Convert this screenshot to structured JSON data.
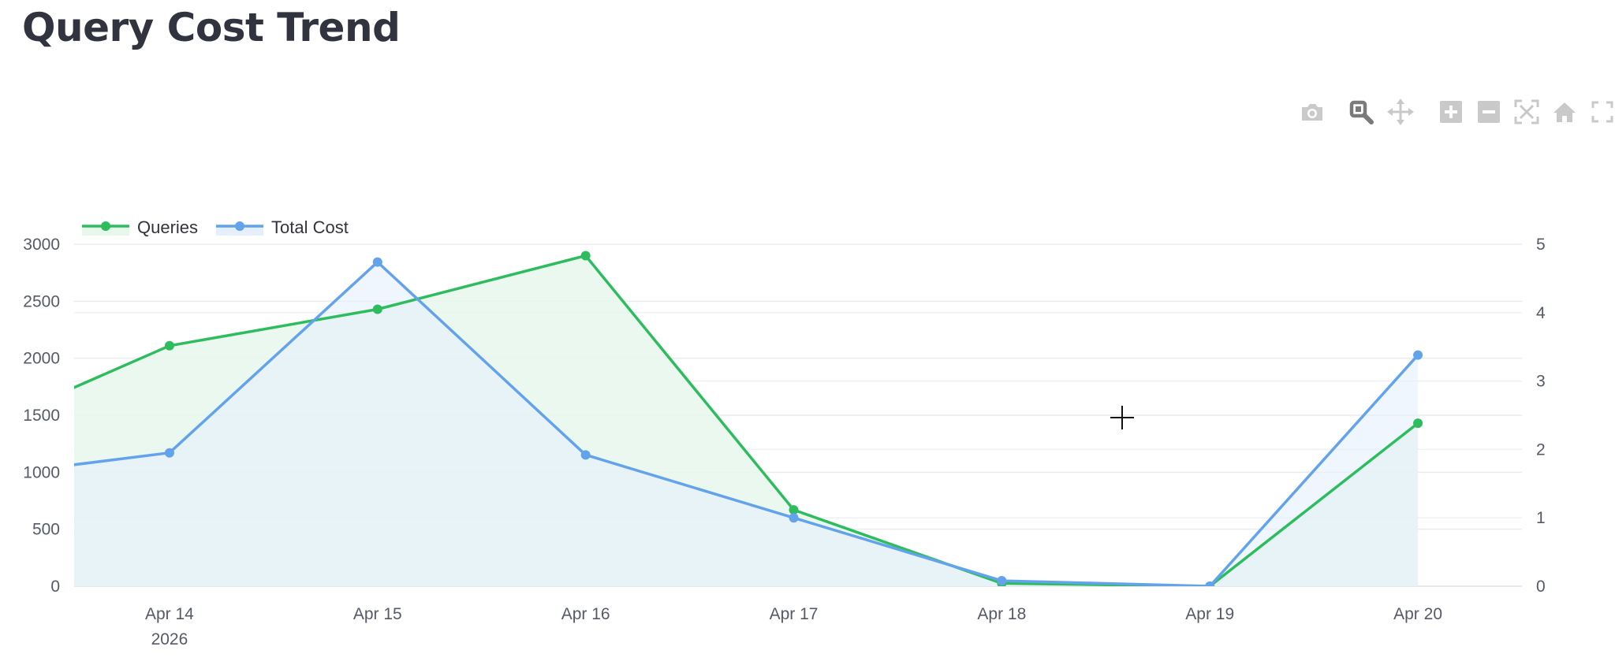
{
  "page": {
    "title": "Query Cost Trend"
  },
  "modebar": {
    "icons": [
      "camera-icon",
      "zoom-icon",
      "pan-icon",
      "zoom-in-icon",
      "zoom-out-icon",
      "autoscale-icon",
      "reset-axes-icon",
      "fullscreen-icon"
    ]
  },
  "chart_data": {
    "type": "area",
    "title": "",
    "xlabel": "",
    "ylabel": "",
    "x_ticks": [
      "Apr 14",
      "Apr 15",
      "Apr 16",
      "Apr 17",
      "Apr 18",
      "Apr 19",
      "Apr 20"
    ],
    "x_year_label": "2026",
    "x_range": [
      "2026-04-13 13:00",
      "2026-04-20 12:00"
    ],
    "y_left": {
      "range": [
        0,
        3000
      ],
      "ticks": [
        0,
        500,
        1000,
        1500,
        2000,
        2500,
        3000
      ]
    },
    "y_right": {
      "range": [
        0,
        5
      ],
      "ticks": [
        0,
        1,
        2,
        3,
        4,
        5
      ]
    },
    "grid": true,
    "legend": {
      "position": "top-left",
      "orientation": "horizontal"
    },
    "series": [
      {
        "name": "Queries",
        "axis": "left",
        "color": "#2ebd5e",
        "fill": "#e8f7ec",
        "points": [
          {
            "x": "2026-04-13",
            "y": 1310
          },
          {
            "x": "2026-04-14",
            "y": 2110
          },
          {
            "x": "2026-04-15",
            "y": 2430
          },
          {
            "x": "2026-04-16",
            "y": 2900
          },
          {
            "x": "2026-04-17",
            "y": 670
          },
          {
            "x": "2026-04-18",
            "y": 25
          },
          {
            "x": "2026-04-19",
            "y": 0
          },
          {
            "x": "2026-04-20",
            "y": 1430
          }
        ]
      },
      {
        "name": "Total Cost",
        "axis": "right",
        "color": "#62a3ec",
        "fill": "#e6f0fc",
        "points": [
          {
            "x": "2026-04-13",
            "y": 1.57
          },
          {
            "x": "2026-04-14",
            "y": 1.95
          },
          {
            "x": "2026-04-15",
            "y": 4.74
          },
          {
            "x": "2026-04-16",
            "y": 1.92
          },
          {
            "x": "2026-04-17",
            "y": 1.0
          },
          {
            "x": "2026-04-18",
            "y": 0.08
          },
          {
            "x": "2026-04-19",
            "y": 0.0
          },
          {
            "x": "2026-04-20",
            "y": 3.38
          }
        ]
      }
    ]
  }
}
